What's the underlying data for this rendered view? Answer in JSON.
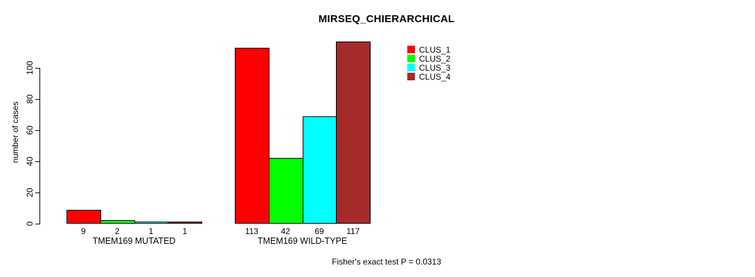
{
  "chart_data": {
    "type": "bar",
    "title": "MIRSEQ_CHIERARCHICAL",
    "ylabel": "number of cases",
    "xlabel": "",
    "yticks": [
      0,
      20,
      40,
      60,
      80,
      100
    ],
    "ylim": [
      0,
      117
    ],
    "grid": false,
    "legend_position": "top-right",
    "categories": [
      "TMEM169 MUTATED",
      "TMEM169 WILD-TYPE"
    ],
    "series": [
      {
        "name": "CLUS_1",
        "color": "#FF0000",
        "values": [
          9,
          113
        ]
      },
      {
        "name": "CLUS_2",
        "color": "#00FF00",
        "values": [
          2,
          42
        ]
      },
      {
        "name": "CLUS_3",
        "color": "#00FFFF",
        "values": [
          1,
          69
        ]
      },
      {
        "name": "CLUS_4",
        "color": "#A52A2A",
        "values": [
          1,
          117
        ]
      }
    ],
    "footnote": "Fisher's exact test P = 0.0313"
  }
}
